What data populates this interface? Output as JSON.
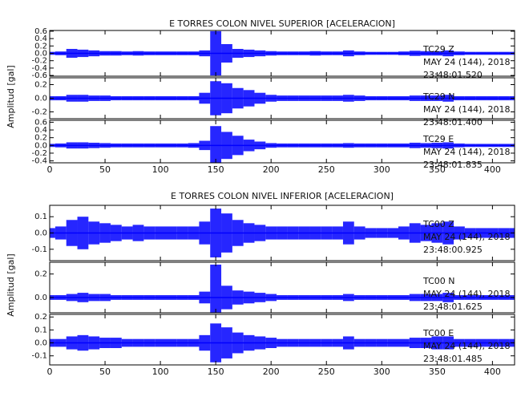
{
  "chart_data": [
    {
      "type": "seismogram",
      "title": "E TORRES COLON NIVEL SUPERIOR [ACELERACION]",
      "ylabel": "Amplitud [gal]",
      "xlim": [
        0,
        420
      ],
      "xticks": [
        0,
        50,
        100,
        150,
        200,
        250,
        300,
        350,
        400
      ],
      "x": [
        0,
        10,
        20,
        30,
        40,
        50,
        60,
        70,
        80,
        90,
        100,
        110,
        120,
        130,
        140,
        150,
        160,
        170,
        180,
        190,
        200,
        210,
        220,
        230,
        240,
        250,
        260,
        270,
        280,
        290,
        300,
        310,
        320,
        330,
        340,
        350,
        360,
        370,
        380,
        390,
        400,
        410,
        420
      ],
      "series": [
        {
          "name": [
            "TC29 Z",
            "MAY 24 (144), 2018",
            "23:48:01.520"
          ],
          "color": "#0000ff",
          "ylim": [
            -0.62,
            0.62
          ],
          "yticks": [
            0.6,
            0.4,
            0.2,
            {
              "value": 0,
              "label": "0.0"
            },
            -0.2,
            -0.4,
            -0.6
          ],
          "values": [
            0.04,
            0.05,
            0.12,
            0.1,
            0.08,
            0.06,
            0.06,
            0.05,
            0.06,
            0.05,
            0.05,
            0.05,
            0.05,
            0.05,
            0.08,
            0.6,
            0.25,
            0.12,
            0.1,
            0.08,
            0.06,
            0.05,
            0.05,
            0.05,
            0.06,
            0.05,
            0.05,
            0.08,
            0.05,
            0.04,
            0.04,
            0.04,
            0.05,
            0.07,
            0.06,
            0.06,
            0.08,
            0.05,
            0.04,
            0.04,
            0.04,
            0.04,
            0.04
          ]
        },
        {
          "name": [
            "TC29 N",
            "MAY 24 (144), 2018",
            "23:48:01.400"
          ],
          "color": "#0000ff",
          "ylim": [
            -0.3,
            0.3
          ],
          "yticks": [
            0.2,
            {
              "value": 0,
              "label": "0.0"
            },
            -0.2
          ],
          "values": [
            0.03,
            0.03,
            0.05,
            0.05,
            0.04,
            0.04,
            0.03,
            0.03,
            0.03,
            0.03,
            0.03,
            0.03,
            0.03,
            0.03,
            0.08,
            0.25,
            0.22,
            0.15,
            0.12,
            0.08,
            0.05,
            0.04,
            0.04,
            0.04,
            0.04,
            0.04,
            0.04,
            0.05,
            0.04,
            0.03,
            0.03,
            0.03,
            0.03,
            0.04,
            0.04,
            0.04,
            0.05,
            0.03,
            0.03,
            0.03,
            0.03,
            0.03,
            0.03
          ]
        },
        {
          "name": [
            "TC29 E",
            "MAY 24 (144), 2018",
            "23:48:01.835"
          ],
          "color": "#0000ff",
          "ylim": [
            -0.45,
            0.65
          ],
          "yticks": [
            0.6,
            0.4,
            0.2,
            {
              "value": 0,
              "label": "0.0"
            },
            -0.2,
            -0.4
          ],
          "values": [
            0.04,
            0.05,
            0.08,
            0.08,
            0.07,
            0.06,
            0.05,
            0.05,
            0.05,
            0.05,
            0.05,
            0.05,
            0.05,
            0.06,
            0.12,
            0.5,
            0.35,
            0.25,
            0.15,
            0.1,
            0.06,
            0.05,
            0.05,
            0.05,
            0.05,
            0.05,
            0.05,
            0.06,
            0.05,
            0.05,
            0.05,
            0.05,
            0.05,
            0.07,
            0.06,
            0.07,
            0.08,
            0.05,
            0.04,
            0.04,
            0.04,
            0.04,
            0.04
          ]
        }
      ]
    },
    {
      "type": "seismogram",
      "title": "E TORRES COLON NIVEL INFERIOR [ACELERACION]",
      "ylabel": "Amplitud [gal]",
      "xlim": [
        0,
        420
      ],
      "xticks": [
        0,
        50,
        100,
        150,
        200,
        250,
        300,
        350,
        400
      ],
      "x": [
        0,
        10,
        20,
        30,
        40,
        50,
        60,
        70,
        80,
        90,
        100,
        110,
        120,
        130,
        140,
        150,
        160,
        170,
        180,
        190,
        200,
        210,
        220,
        230,
        240,
        250,
        260,
        270,
        280,
        290,
        300,
        310,
        320,
        330,
        340,
        350,
        360,
        370,
        380,
        390,
        400,
        410,
        420
      ],
      "series": [
        {
          "name": [
            "TC00 Z",
            "MAY 24 (144), 2018",
            "23:48:00.925"
          ],
          "color": "#0000ff",
          "ylim": [
            -0.17,
            0.17
          ],
          "yticks": [
            0.1,
            {
              "value": 0,
              "label": "0.0"
            },
            -0.1
          ],
          "values": [
            0.03,
            0.04,
            0.08,
            0.1,
            0.07,
            0.06,
            0.05,
            0.04,
            0.05,
            0.04,
            0.04,
            0.04,
            0.04,
            0.04,
            0.07,
            0.15,
            0.12,
            0.08,
            0.06,
            0.05,
            0.04,
            0.04,
            0.04,
            0.04,
            0.04,
            0.04,
            0.04,
            0.07,
            0.04,
            0.03,
            0.03,
            0.03,
            0.04,
            0.06,
            0.05,
            0.06,
            0.07,
            0.04,
            0.03,
            0.03,
            0.03,
            0.03,
            0.03
          ]
        },
        {
          "name": [
            "TC00 N",
            "MAY 24 (144), 2018",
            "23:48:01.625"
          ],
          "color": "#0000ff",
          "ylim": [
            -0.13,
            0.3
          ],
          "yticks": [
            0.2,
            {
              "value": 0,
              "label": "0.0"
            }
          ],
          "values": [
            0.02,
            0.02,
            0.03,
            0.04,
            0.03,
            0.03,
            0.02,
            0.02,
            0.02,
            0.02,
            0.02,
            0.02,
            0.02,
            0.02,
            0.05,
            0.28,
            0.1,
            0.06,
            0.05,
            0.04,
            0.03,
            0.02,
            0.02,
            0.02,
            0.02,
            0.02,
            0.02,
            0.03,
            0.02,
            0.02,
            0.02,
            0.02,
            0.02,
            0.03,
            0.03,
            0.03,
            0.04,
            0.02,
            0.02,
            0.02,
            0.02,
            0.02,
            0.02
          ]
        },
        {
          "name": [
            "TC00 E",
            "MAY 24 (144), 2018",
            "23:48:01.485"
          ],
          "color": "#0000ff",
          "ylim": [
            -0.17,
            0.22
          ],
          "yticks": [
            0.2,
            0.1,
            {
              "value": 0,
              "label": "0.0"
            },
            -0.1
          ],
          "values": [
            0.03,
            0.03,
            0.05,
            0.06,
            0.05,
            0.04,
            0.04,
            0.03,
            0.03,
            0.03,
            0.03,
            0.03,
            0.03,
            0.03,
            0.06,
            0.15,
            0.12,
            0.08,
            0.06,
            0.05,
            0.04,
            0.03,
            0.03,
            0.03,
            0.03,
            0.03,
            0.03,
            0.05,
            0.03,
            0.03,
            0.03,
            0.03,
            0.03,
            0.04,
            0.04,
            0.05,
            0.05,
            0.03,
            0.03,
            0.03,
            0.03,
            0.03,
            0.03
          ]
        }
      ]
    }
  ]
}
